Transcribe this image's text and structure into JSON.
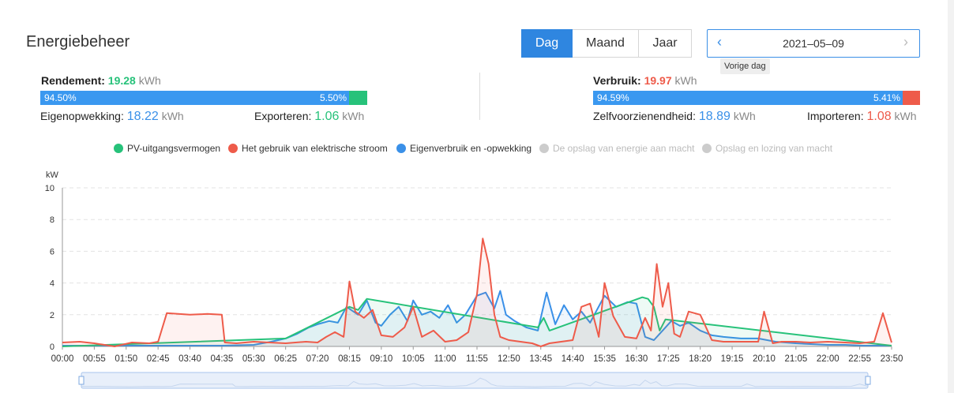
{
  "header": {
    "title": "Energiebeheer"
  },
  "tabs": [
    {
      "label": "Dag",
      "active": true
    },
    {
      "label": "Maand",
      "active": false
    },
    {
      "label": "Jaar",
      "active": false
    }
  ],
  "date_picker": {
    "value": "2021–05–09",
    "prev_icon": "chevron-left-icon",
    "next_icon": "chevron-right-icon",
    "tooltip": "Vorige dag"
  },
  "left_stats": {
    "title_label": "Rendement:",
    "title_value": "19.28",
    "unit": "kWh",
    "bar_left": "94.50%",
    "bar_right": "5.50%",
    "bar_fraction": 0.945,
    "sub1_label": "Eigenopwekking:",
    "sub1_value": "18.22",
    "sub2_label": "Exporteren:",
    "sub2_value": "1.06"
  },
  "right_stats": {
    "title_label": "Verbruik:",
    "title_value": "19.97",
    "unit": "kWh",
    "bar_left": "94.59%",
    "bar_right": "5.41%",
    "bar_fraction": 0.9459,
    "sub1_label": "Zelfvoorzienendheid:",
    "sub1_value": "18.89",
    "sub2_label": "Importeren:",
    "sub2_value": "1.08"
  },
  "legend": [
    {
      "label": "PV-uitgangsvermogen",
      "color": "#27c27a",
      "active": true
    },
    {
      "label": "Het gebruik van elektrische stroom",
      "color": "#ee5b4a",
      "active": true
    },
    {
      "label": "Eigenverbruik en -opwekking",
      "color": "#3a90e8",
      "active": true
    },
    {
      "label": "De opslag van energie aan macht",
      "color": "#cccccc",
      "active": false
    },
    {
      "label": "Opslag en lozing van macht",
      "color": "#cccccc",
      "active": false
    }
  ],
  "chart_data": {
    "type": "line",
    "ylabel": "kW",
    "ylim": [
      0,
      10
    ],
    "yticks": [
      "0",
      "2",
      "4",
      "6",
      "8",
      "10"
    ],
    "xticks": [
      "00:00",
      "00:55",
      "01:50",
      "02:45",
      "03:40",
      "04:35",
      "05:30",
      "06:25",
      "07:20",
      "08:15",
      "09:10",
      "10:05",
      "11:00",
      "11:55",
      "12:50",
      "13:45",
      "14:40",
      "15:35",
      "16:30",
      "17:25",
      "18:20",
      "19:15",
      "20:10",
      "21:05",
      "22:00",
      "22:55",
      "23:50"
    ],
    "grid": true,
    "series": [
      {
        "name": "Het gebruik van elektrische stroom",
        "color": "#ee5b4a",
        "x": [
          "00:00",
          "00:30",
          "00:55",
          "01:30",
          "02:00",
          "02:30",
          "02:45",
          "03:00",
          "03:40",
          "04:10",
          "04:35",
          "04:40",
          "05:00",
          "05:30",
          "06:25",
          "07:00",
          "07:20",
          "07:35",
          "07:50",
          "08:05",
          "08:15",
          "08:25",
          "08:40",
          "08:55",
          "09:10",
          "09:30",
          "09:50",
          "10:05",
          "10:20",
          "10:40",
          "11:00",
          "11:20",
          "11:40",
          "11:55",
          "12:05",
          "12:15",
          "12:25",
          "12:35",
          "12:50",
          "13:10",
          "13:30",
          "13:45",
          "14:00",
          "14:20",
          "14:40",
          "14:55",
          "15:10",
          "15:25",
          "15:35",
          "15:50",
          "16:10",
          "16:30",
          "16:45",
          "16:55",
          "17:05",
          "17:15",
          "17:25",
          "17:35",
          "17:45",
          "18:00",
          "18:20",
          "18:40",
          "19:00",
          "19:15",
          "19:40",
          "20:00",
          "20:10",
          "20:25",
          "20:40",
          "21:05",
          "21:30",
          "22:00",
          "22:30",
          "22:55",
          "23:20",
          "23:35",
          "23:50"
        ],
        "y": [
          0.25,
          0.3,
          0.2,
          0.0,
          0.25,
          0.2,
          0.3,
          2.1,
          2.0,
          2.05,
          2.0,
          0.25,
          0.2,
          0.3,
          0.2,
          0.3,
          0.25,
          0.6,
          0.9,
          0.6,
          4.1,
          2.2,
          1.8,
          2.3,
          0.7,
          0.6,
          1.2,
          2.5,
          0.6,
          1.0,
          0.3,
          0.4,
          0.9,
          3.3,
          6.8,
          5.2,
          2.0,
          0.6,
          0.4,
          0.3,
          0.2,
          0.0,
          0.2,
          0.3,
          0.4,
          2.5,
          2.7,
          0.6,
          4.0,
          1.9,
          0.6,
          0.5,
          1.8,
          1.0,
          5.2,
          2.5,
          4.0,
          0.8,
          0.6,
          2.2,
          2.0,
          0.4,
          0.3,
          0.3,
          0.3,
          0.3,
          2.2,
          0.2,
          0.3,
          0.3,
          0.25,
          0.3,
          0.25,
          0.2,
          0.3,
          2.1,
          0.25
        ]
      },
      {
        "name": "Eigenverbruik en -opwekking",
        "color": "#3a90e8",
        "x": [
          "00:00",
          "02:00",
          "04:35",
          "05:30",
          "06:00",
          "06:25",
          "06:45",
          "07:05",
          "07:20",
          "07:40",
          "07:55",
          "08:10",
          "08:30",
          "08:45",
          "09:00",
          "09:10",
          "09:25",
          "09:40",
          "09:55",
          "10:05",
          "10:20",
          "10:35",
          "10:50",
          "11:05",
          "11:20",
          "11:35",
          "11:55",
          "12:10",
          "12:25",
          "12:35",
          "12:45",
          "13:00",
          "13:20",
          "13:40",
          "13:55",
          "14:10",
          "14:25",
          "14:40",
          "14:55",
          "15:10",
          "15:35",
          "15:55",
          "16:15",
          "16:30",
          "16:45",
          "17:00",
          "17:15",
          "17:30",
          "17:45",
          "18:00",
          "18:20",
          "18:40",
          "19:00",
          "19:30",
          "20:00",
          "20:30",
          "21:05",
          "21:30",
          "22:00",
          "22:30",
          "23:00",
          "23:50"
        ],
        "y": [
          0.05,
          0.05,
          0.05,
          0.1,
          0.3,
          0.5,
          0.8,
          1.2,
          1.4,
          1.6,
          1.5,
          2.5,
          2.0,
          2.9,
          1.5,
          1.3,
          2.0,
          2.5,
          1.6,
          2.9,
          2.0,
          2.2,
          1.8,
          2.6,
          1.5,
          2.0,
          3.2,
          3.4,
          2.4,
          3.5,
          2.0,
          1.6,
          1.2,
          1.0,
          3.4,
          1.4,
          2.6,
          1.7,
          2.2,
          1.5,
          3.2,
          2.5,
          2.8,
          2.7,
          0.6,
          0.4,
          1.0,
          1.6,
          1.3,
          1.5,
          1.0,
          0.7,
          0.6,
          0.5,
          0.5,
          0.3,
          0.2,
          0.15,
          0.1,
          0.1,
          0.05,
          0.05
        ]
      },
      {
        "name": "PV-uitgangsvermogen",
        "color": "#27c27a",
        "x": [
          "00:00",
          "06:25",
          "08:15",
          "08:30",
          "08:45",
          "13:40",
          "13:50",
          "14:00",
          "16:40",
          "16:50",
          "17:00",
          "17:10",
          "17:20",
          "23:50"
        ],
        "y": [
          0,
          0.5,
          2.5,
          2.3,
          3.0,
          1.2,
          1.8,
          1.0,
          3.1,
          3.0,
          2.5,
          1.0,
          1.7,
          0.05
        ]
      }
    ]
  },
  "zoom_slider": {}
}
